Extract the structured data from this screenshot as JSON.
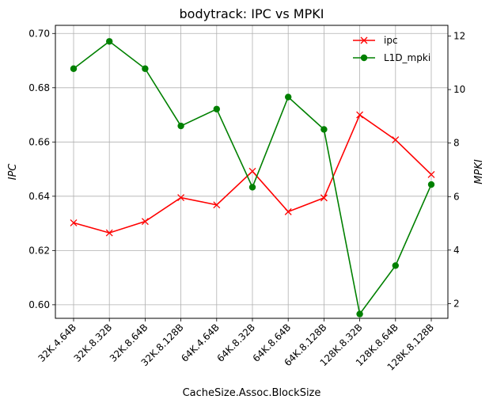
{
  "chart_data": {
    "type": "line",
    "title": "bodytrack: IPC vs MPKI",
    "xlabel": "CacheSize.Assoc.BlockSize",
    "ylabel_left": "IPC",
    "ylabel_right": "MPKI",
    "categories": [
      "32K.4.64B",
      "32K.8.32B",
      "32K.8.64B",
      "32K.8.128B",
      "64K.4.64B",
      "64K.8.32B",
      "64K.8.64B",
      "64K.8.128B",
      "128K.8.32B",
      "128K.8.64B",
      "128K.8.128B"
    ],
    "ylim_left": [
      0.595,
      0.703
    ],
    "ylim_right": [
      1.45,
      12.4
    ],
    "yticks_left": [
      "0.60",
      "0.62",
      "0.64",
      "0.66",
      "0.68",
      "0.70"
    ],
    "yticks_right": [
      "2",
      "4",
      "6",
      "8",
      "10",
      "12"
    ],
    "grid": true,
    "legend_position": "top-right",
    "series": [
      {
        "name": "ipc",
        "axis": "left",
        "color": "#ff0000",
        "marker": "x",
        "values": [
          0.6302,
          0.6265,
          0.6307,
          0.6395,
          0.6368,
          0.6492,
          0.6343,
          0.6394,
          0.67,
          0.6608,
          0.648
        ]
      },
      {
        "name": "L1D_mpki",
        "axis": "right",
        "color": "#008000",
        "marker": "o",
        "values": [
          10.78,
          11.8,
          10.78,
          8.64,
          9.27,
          6.35,
          9.72,
          8.51,
          1.61,
          3.42,
          6.45
        ]
      }
    ]
  }
}
